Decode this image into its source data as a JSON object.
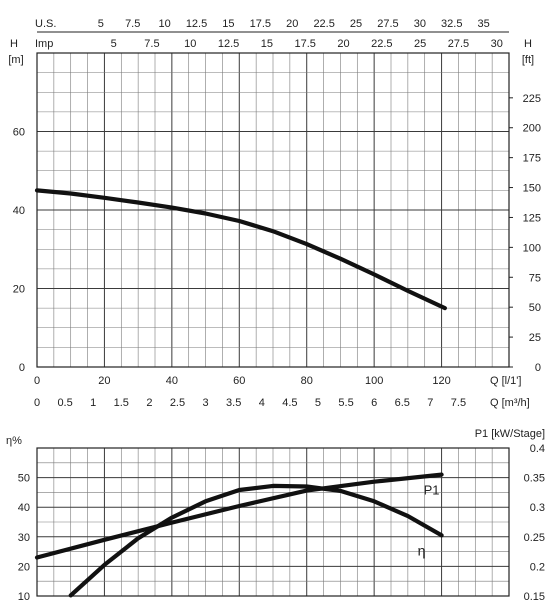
{
  "chart_data": [
    {
      "type": "line",
      "name_key": "head",
      "top_axis_us": {
        "label": "U.S.",
        "ticks": [
          "5",
          "7.5",
          "10",
          "12.5",
          "15",
          "17.5",
          "20",
          "22.5",
          "25",
          "27.5",
          "30",
          "32.5",
          "35"
        ],
        "values": [
          5,
          7.5,
          10,
          12.5,
          15,
          17.5,
          20,
          22.5,
          25,
          27.5,
          30,
          32.5,
          35
        ]
      },
      "top_axis_imp": {
        "label": "Imp",
        "ticks": [
          "5",
          "7.5",
          "10",
          "12.5",
          "15",
          "17.5",
          "20",
          "22.5",
          "25",
          "27.5",
          "30"
        ],
        "values": [
          5,
          7.5,
          10,
          12.5,
          15,
          17.5,
          20,
          22.5,
          25,
          27.5,
          30
        ]
      },
      "left_axis": {
        "label_top": "H",
        "unit": "[m]",
        "ticks": [
          "0",
          "20",
          "40",
          "60"
        ],
        "values": [
          0,
          20,
          40,
          60
        ],
        "ylim": [
          0,
          80
        ]
      },
      "right_axis": {
        "label_top": "H",
        "unit": "[ft]",
        "ticks": [
          "0",
          "25",
          "50",
          "75",
          "100",
          "125",
          "150",
          "175",
          "200",
          "225"
        ],
        "values": [
          0,
          25,
          50,
          75,
          100,
          125,
          150,
          175,
          200,
          225
        ]
      },
      "x_axis_lpm": {
        "label": "Q  [l/1']",
        "ticks": [
          "0",
          "20",
          "40",
          "60",
          "80",
          "100",
          "120"
        ],
        "values": [
          0,
          20,
          40,
          60,
          80,
          100,
          120
        ],
        "xlim": [
          0,
          140
        ]
      },
      "x_axis_m3h": {
        "label": "Q  [m³/h]",
        "ticks": [
          "0",
          "0.5",
          "1",
          "1.5",
          "2",
          "2.5",
          "3",
          "3.5",
          "4",
          "4.5",
          "5",
          "5.5",
          "6",
          "6.5",
          "7",
          "7.5"
        ],
        "values": [
          0,
          0.5,
          1,
          1.5,
          2,
          2.5,
          3,
          3.5,
          4,
          4.5,
          5,
          5.5,
          6,
          6.5,
          7,
          7.5
        ]
      },
      "grid": true,
      "series": [
        {
          "x": [
            0,
            10,
            20,
            30,
            40,
            50,
            60,
            70,
            80,
            90,
            100,
            110,
            121
          ],
          "y": [
            45,
            44.2,
            43.1,
            41.9,
            40.6,
            39.1,
            37.2,
            34.6,
            31.3,
            27.6,
            23.6,
            19.4,
            15
          ]
        }
      ]
    },
    {
      "type": "line",
      "name_key": "efficiency_power",
      "left_axis": {
        "label_top": "η%",
        "ticks": [
          "10",
          "20",
          "30",
          "40",
          "50"
        ],
        "values": [
          10,
          20,
          30,
          40,
          50
        ],
        "ylim": [
          10,
          60
        ]
      },
      "right_axis": {
        "label_top": "P1 [kW/Stage]",
        "ticks": [
          "0.15",
          "0.2",
          "0.25",
          "0.3",
          "0.35",
          "0.4"
        ],
        "values": [
          0.15,
          0.2,
          0.25,
          0.3,
          0.35,
          0.4
        ],
        "ylim": [
          0.15,
          0.4
        ]
      },
      "xlim": [
        0,
        140
      ],
      "grid": true,
      "series": [
        {
          "name": "η",
          "x": [
            10,
            20,
            30,
            40,
            50,
            60,
            70,
            80,
            90,
            100,
            110,
            120
          ],
          "y": [
            10.2,
            20.5,
            29.5,
            36.5,
            42,
            45.8,
            47.2,
            47,
            45.5,
            42,
            37,
            30.5
          ]
        },
        {
          "name": "P1",
          "axis": "right",
          "x": [
            0,
            20,
            40,
            60,
            80,
            100,
            120
          ],
          "y": [
            0.215,
            0.245,
            0.274,
            0.302,
            0.328,
            0.343,
            0.355
          ]
        }
      ]
    }
  ]
}
